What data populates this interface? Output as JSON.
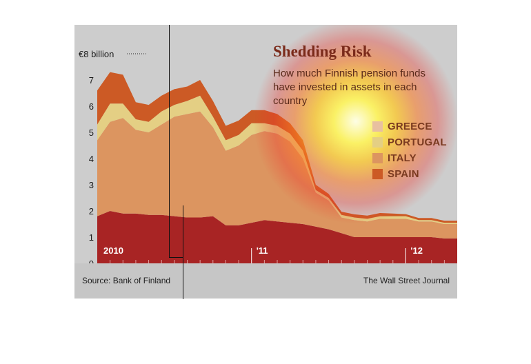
{
  "title": "Shedding Risk",
  "subtitle": "How much Finnish pension funds have invested in assets in each country",
  "source": "Source: Bank of Finland",
  "publisher": "The Wall Street Journal",
  "colors": {
    "greece": "#e8c0a0",
    "portugal": "#e4cf84",
    "italy": "#dc9560",
    "spain": "#cc5a25",
    "base": "#a82424",
    "background": "#cdcdcd"
  },
  "legend": [
    {
      "label": "GREECE",
      "key": "greece"
    },
    {
      "label": "PORTUGAL",
      "key": "portugal"
    },
    {
      "label": "ITALY",
      "key": "italy"
    },
    {
      "label": "SPAIN",
      "key": "spain"
    }
  ],
  "chart_data": {
    "type": "area",
    "stacked": true,
    "y_unit_label": "€8 billion",
    "ylim": [
      0,
      8
    ],
    "yticks": [
      0,
      1,
      2,
      3,
      4,
      5,
      6,
      7
    ],
    "x_year_labels": [
      "2010",
      "'11",
      "'12"
    ],
    "x": [
      0,
      1,
      2,
      3,
      4,
      5,
      6,
      7,
      8,
      9,
      10,
      11,
      12,
      13,
      14,
      15,
      16,
      17,
      18,
      19,
      20,
      21,
      22,
      23,
      24,
      25,
      26,
      27,
      28
    ],
    "series": [
      {
        "name": "",
        "key": "base",
        "values": [
          1.8,
          2.0,
          1.9,
          1.9,
          1.85,
          1.85,
          1.8,
          1.75,
          1.75,
          1.8,
          1.45,
          1.45,
          1.55,
          1.65,
          1.6,
          1.55,
          1.5,
          1.4,
          1.3,
          1.15,
          1.0,
          1.0,
          1.0,
          1.0,
          1.0,
          1.0,
          1.0,
          0.95,
          0.95
        ]
      },
      {
        "name": "ITALY",
        "key": "italy",
        "values": [
          2.9,
          3.4,
          3.65,
          3.2,
          3.15,
          3.45,
          3.8,
          3.95,
          4.05,
          3.4,
          2.85,
          3.05,
          3.35,
          3.4,
          3.35,
          3.1,
          2.5,
          1.3,
          1.1,
          0.6,
          0.65,
          0.6,
          0.7,
          0.7,
          0.7,
          0.6,
          0.6,
          0.55,
          0.55
        ]
      },
      {
        "name": "PORTUGAL",
        "key": "portugal",
        "values": [
          0.6,
          0.7,
          0.55,
          0.4,
          0.4,
          0.5,
          0.45,
          0.5,
          0.6,
          0.4,
          0.4,
          0.4,
          0.45,
          0.3,
          0.3,
          0.3,
          0.3,
          0.1,
          0.1,
          0.1,
          0.1,
          0.1,
          0.1,
          0.1,
          0.1,
          0.05,
          0.05,
          0.05,
          0.05
        ]
      },
      {
        "name": "SPAIN",
        "key": "spain",
        "values": [
          1.3,
          1.2,
          1.1,
          0.65,
          0.65,
          0.6,
          0.6,
          0.55,
          0.6,
          0.6,
          0.55,
          0.55,
          0.5,
          0.5,
          0.45,
          0.4,
          0.4,
          0.2,
          0.15,
          0.12,
          0.12,
          0.12,
          0.12,
          0.1,
          0.08,
          0.08,
          0.08,
          0.08,
          0.08
        ]
      }
    ]
  }
}
